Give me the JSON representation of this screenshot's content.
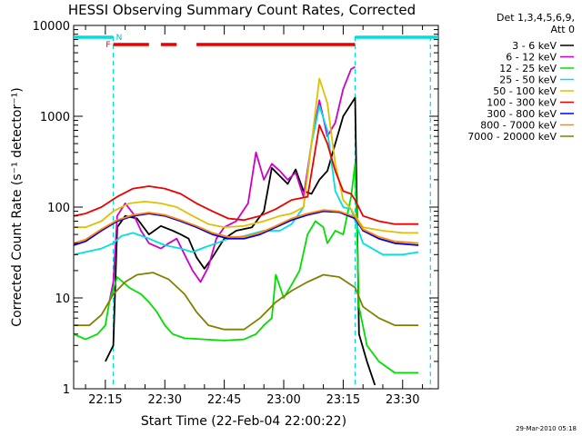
{
  "chart_data": {
    "type": "line",
    "title": "HESSI Observing Summary Count Rates, Corrected",
    "xlabel": "Start Time (22-Feb-04 22:00:22)",
    "ylabel": "Corrected Count Rate (s⁻¹ detector⁻¹)",
    "yscale": "log",
    "ylim": [
      1,
      10000
    ],
    "xlim": [
      "22:07",
      "23:39"
    ],
    "x_ticks": [
      "22:15",
      "22:30",
      "22:45",
      "23:00",
      "23:15",
      "23:30"
    ],
    "y_ticks": [
      "1",
      "10",
      "100",
      "1000",
      "10000"
    ],
    "legend_position": "right",
    "legend_header": [
      "Det 1,3,4,5,6,9,",
      "Att 0"
    ],
    "timestamp": "29-Mar-2010 05:18",
    "flag_labels": {
      "F": "F",
      "N": "N"
    },
    "flags": {
      "night": [
        [
          "22:07",
          "22:17"
        ],
        [
          "23:18",
          "23:39"
        ]
      ],
      "flare": [
        [
          "22:17",
          "22:26"
        ],
        [
          "22:29",
          "22:33"
        ],
        [
          "22:38",
          "23:18"
        ]
      ],
      "saa_lines": [
        "22:17",
        "23:18",
        "23:37"
      ]
    },
    "series": [
      {
        "name": "3 - 6 keV",
        "color": "#000000",
        "points": [
          [
            "22:15",
            2
          ],
          [
            "22:17",
            3
          ],
          [
            "22:18",
            60
          ],
          [
            "22:20",
            80
          ],
          [
            "22:23",
            75
          ],
          [
            "22:26",
            50
          ],
          [
            "22:29",
            62
          ],
          [
            "22:32",
            55
          ],
          [
            "22:34",
            50
          ],
          [
            "22:36",
            45
          ],
          [
            "22:38",
            28
          ],
          [
            "22:40",
            21
          ],
          [
            "22:42",
            28
          ],
          [
            "22:45",
            45
          ],
          [
            "22:48",
            55
          ],
          [
            "22:52",
            60
          ],
          [
            "22:55",
            90
          ],
          [
            "22:57",
            270
          ],
          [
            "22:59",
            220
          ],
          [
            "23:01",
            180
          ],
          [
            "23:03",
            260
          ],
          [
            "23:05",
            150
          ],
          [
            "23:07",
            140
          ],
          [
            "23:09",
            200
          ],
          [
            "23:11",
            250
          ],
          [
            "23:13",
            500
          ],
          [
            "23:15",
            1000
          ],
          [
            "23:18",
            1600
          ],
          [
            "23:19",
            4
          ],
          [
            "23:21",
            2
          ],
          [
            "23:23",
            1.1
          ]
        ]
      },
      {
        "name": "6 - 12 keV",
        "color": "#cc00cc",
        "points": [
          [
            "22:16",
            9
          ],
          [
            "22:17",
            15
          ],
          [
            "22:18",
            80
          ],
          [
            "22:20",
            110
          ],
          [
            "22:22",
            85
          ],
          [
            "22:24",
            55
          ],
          [
            "22:26",
            40
          ],
          [
            "22:29",
            35
          ],
          [
            "22:31",
            40
          ],
          [
            "22:33",
            45
          ],
          [
            "22:35",
            30
          ],
          [
            "22:37",
            20
          ],
          [
            "22:39",
            15
          ],
          [
            "22:41",
            22
          ],
          [
            "22:43",
            45
          ],
          [
            "22:45",
            60
          ],
          [
            "22:48",
            70
          ],
          [
            "22:51",
            110
          ],
          [
            "22:53",
            400
          ],
          [
            "22:55",
            200
          ],
          [
            "22:57",
            300
          ],
          [
            "22:59",
            250
          ],
          [
            "23:01",
            200
          ],
          [
            "23:03",
            240
          ],
          [
            "23:05",
            130
          ],
          [
            "23:07",
            500
          ],
          [
            "23:09",
            1500
          ],
          [
            "23:11",
            600
          ],
          [
            "23:13",
            850
          ],
          [
            "23:15",
            2000
          ],
          [
            "23:17",
            3300
          ],
          [
            "23:18",
            3500
          ]
        ]
      },
      {
        "name": "12 - 25 keV",
        "color": "#00e000",
        "points": [
          [
            "22:07",
            4
          ],
          [
            "22:10",
            3.5
          ],
          [
            "22:13",
            4
          ],
          [
            "22:15",
            5
          ],
          [
            "22:16",
            9
          ],
          [
            "22:18",
            17
          ],
          [
            "22:21",
            13
          ],
          [
            "22:24",
            11
          ],
          [
            "22:26",
            9
          ],
          [
            "22:28",
            7
          ],
          [
            "22:30",
            5
          ],
          [
            "22:32",
            4
          ],
          [
            "22:35",
            3.6
          ],
          [
            "22:40",
            3.5
          ],
          [
            "22:45",
            3.4
          ],
          [
            "22:50",
            3.5
          ],
          [
            "22:53",
            4
          ],
          [
            "22:55",
            5
          ],
          [
            "22:57",
            6
          ],
          [
            "22:58",
            18
          ],
          [
            "23:00",
            10
          ],
          [
            "23:02",
            14
          ],
          [
            "23:04",
            20
          ],
          [
            "23:06",
            50
          ],
          [
            "23:08",
            70
          ],
          [
            "23:10",
            60
          ],
          [
            "23:11",
            40
          ],
          [
            "23:13",
            55
          ],
          [
            "23:15",
            50
          ],
          [
            "23:17",
            130
          ],
          [
            "23:18",
            300
          ],
          [
            "23:19",
            8
          ],
          [
            "23:21",
            3
          ],
          [
            "23:24",
            2
          ],
          [
            "23:28",
            1.5
          ],
          [
            "23:34",
            1.5
          ]
        ]
      },
      {
        "name": "25 - 50 keV",
        "color": "#00e0e0",
        "points": [
          [
            "22:07",
            30
          ],
          [
            "22:10",
            32
          ],
          [
            "22:14",
            35
          ],
          [
            "22:17",
            40
          ],
          [
            "22:19",
            48
          ],
          [
            "22:22",
            52
          ],
          [
            "22:26",
            45
          ],
          [
            "22:30",
            38
          ],
          [
            "22:34",
            35
          ],
          [
            "22:37",
            32
          ],
          [
            "22:40",
            36
          ],
          [
            "22:43",
            40
          ],
          [
            "22:46",
            45
          ],
          [
            "22:50",
            48
          ],
          [
            "22:55",
            55
          ],
          [
            "22:59",
            55
          ],
          [
            "23:02",
            65
          ],
          [
            "23:05",
            100
          ],
          [
            "23:07",
            500
          ],
          [
            "23:09",
            1300
          ],
          [
            "23:11",
            700
          ],
          [
            "23:13",
            150
          ],
          [
            "23:15",
            100
          ],
          [
            "23:17",
            95
          ],
          [
            "23:18",
            70
          ],
          [
            "23:20",
            40
          ],
          [
            "23:25",
            30
          ],
          [
            "23:30",
            30
          ],
          [
            "23:34",
            32
          ]
        ]
      },
      {
        "name": "50 - 100 keV",
        "color": "#e0c000",
        "points": [
          [
            "22:07",
            60
          ],
          [
            "22:10",
            60
          ],
          [
            "22:14",
            70
          ],
          [
            "22:17",
            90
          ],
          [
            "22:21",
            110
          ],
          [
            "22:25",
            115
          ],
          [
            "22:29",
            110
          ],
          [
            "22:33",
            100
          ],
          [
            "22:37",
            80
          ],
          [
            "22:41",
            65
          ],
          [
            "22:45",
            60
          ],
          [
            "22:50",
            62
          ],
          [
            "22:55",
            70
          ],
          [
            "22:59",
            80
          ],
          [
            "23:02",
            85
          ],
          [
            "23:05",
            100
          ],
          [
            "23:07",
            500
          ],
          [
            "23:09",
            2600
          ],
          [
            "23:11",
            1400
          ],
          [
            "23:13",
            300
          ],
          [
            "23:15",
            120
          ],
          [
            "23:17",
            95
          ],
          [
            "23:18",
            80
          ],
          [
            "23:20",
            60
          ],
          [
            "23:25",
            55
          ],
          [
            "23:30",
            52
          ],
          [
            "23:34",
            52
          ]
        ]
      },
      {
        "name": "100 - 300 keV",
        "color": "#ee0000",
        "points": [
          [
            "22:07",
            80
          ],
          [
            "22:10",
            85
          ],
          [
            "22:14",
            100
          ],
          [
            "22:18",
            130
          ],
          [
            "22:22",
            160
          ],
          [
            "22:26",
            170
          ],
          [
            "22:30",
            160
          ],
          [
            "22:34",
            140
          ],
          [
            "22:38",
            110
          ],
          [
            "22:42",
            90
          ],
          [
            "22:46",
            75
          ],
          [
            "22:50",
            72
          ],
          [
            "22:54",
            80
          ],
          [
            "22:58",
            95
          ],
          [
            "23:02",
            120
          ],
          [
            "23:06",
            130
          ],
          [
            "23:09",
            800
          ],
          [
            "23:11",
            500
          ],
          [
            "23:13",
            250
          ],
          [
            "23:15",
            150
          ],
          [
            "23:17",
            140
          ],
          [
            "23:18",
            120
          ],
          [
            "23:20",
            80
          ],
          [
            "23:24",
            70
          ],
          [
            "23:28",
            65
          ],
          [
            "23:34",
            65
          ]
        ]
      },
      {
        "name": "300 - 800 keV",
        "color": "#0000ee",
        "points": [
          [
            "22:07",
            38
          ],
          [
            "22:10",
            42
          ],
          [
            "22:14",
            55
          ],
          [
            "22:18",
            70
          ],
          [
            "22:22",
            80
          ],
          [
            "22:26",
            85
          ],
          [
            "22:30",
            80
          ],
          [
            "22:34",
            70
          ],
          [
            "22:38",
            60
          ],
          [
            "22:42",
            50
          ],
          [
            "22:46",
            45
          ],
          [
            "22:50",
            45
          ],
          [
            "22:54",
            50
          ],
          [
            "22:58",
            60
          ],
          [
            "23:02",
            72
          ],
          [
            "23:06",
            82
          ],
          [
            "23:10",
            90
          ],
          [
            "23:14",
            88
          ],
          [
            "23:18",
            75
          ],
          [
            "23:20",
            55
          ],
          [
            "23:24",
            45
          ],
          [
            "23:28",
            40
          ],
          [
            "23:34",
            38
          ]
        ]
      },
      {
        "name": "800 - 7000 keV",
        "color": "#ff8800",
        "points": [
          [
            "22:07",
            40
          ],
          [
            "22:10",
            44
          ],
          [
            "22:14",
            57
          ],
          [
            "22:18",
            72
          ],
          [
            "22:22",
            82
          ],
          [
            "22:26",
            87
          ],
          [
            "22:30",
            82
          ],
          [
            "22:34",
            72
          ],
          [
            "22:38",
            62
          ],
          [
            "22:42",
            52
          ],
          [
            "22:46",
            47
          ],
          [
            "22:50",
            47
          ],
          [
            "22:54",
            52
          ],
          [
            "22:58",
            62
          ],
          [
            "23:02",
            75
          ],
          [
            "23:06",
            85
          ],
          [
            "23:10",
            93
          ],
          [
            "23:14",
            90
          ],
          [
            "23:18",
            78
          ],
          [
            "23:20",
            57
          ],
          [
            "23:24",
            47
          ],
          [
            "23:28",
            42
          ],
          [
            "23:34",
            40
          ]
        ]
      },
      {
        "name": "7000 - 20000 keV",
        "color": "#808000",
        "points": [
          [
            "22:07",
            5
          ],
          [
            "22:11",
            5
          ],
          [
            "22:14",
            6.5
          ],
          [
            "22:17",
            11
          ],
          [
            "22:20",
            15
          ],
          [
            "22:23",
            18
          ],
          [
            "22:27",
            19
          ],
          [
            "22:31",
            16
          ],
          [
            "22:35",
            11
          ],
          [
            "22:38",
            7
          ],
          [
            "22:41",
            5
          ],
          [
            "22:45",
            4.5
          ],
          [
            "22:50",
            4.5
          ],
          [
            "22:54",
            6
          ],
          [
            "22:58",
            9
          ],
          [
            "23:02",
            12
          ],
          [
            "23:06",
            15
          ],
          [
            "23:10",
            18
          ],
          [
            "23:14",
            17
          ],
          [
            "23:18",
            13
          ],
          [
            "23:20",
            8
          ],
          [
            "23:24",
            6
          ],
          [
            "23:28",
            5
          ],
          [
            "23:34",
            5
          ]
        ]
      }
    ]
  }
}
